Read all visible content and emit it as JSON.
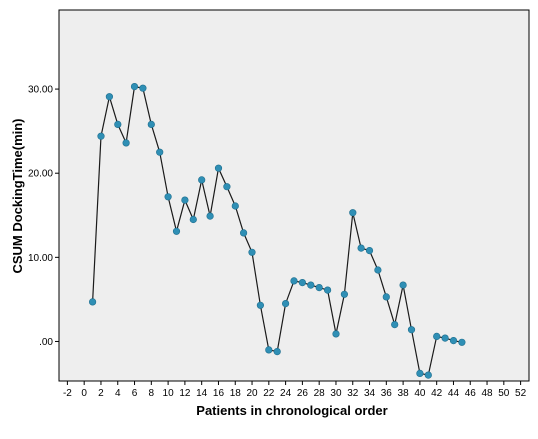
{
  "chart_data": {
    "type": "line",
    "title": "",
    "xlabel": "Patients in chronological order",
    "ylabel": "CSUM DockingTime(min)",
    "xlim": [
      -3,
      53
    ],
    "ylim": [
      -4.7,
      39.4
    ],
    "x_ticks": [
      -2,
      0,
      2,
      4,
      6,
      8,
      10,
      12,
      14,
      16,
      18,
      20,
      22,
      24,
      26,
      28,
      30,
      32,
      34,
      36,
      38,
      40,
      42,
      44,
      46,
      48,
      50,
      52
    ],
    "y_ticks": [
      0,
      10,
      20,
      30
    ],
    "y_tick_labels": [
      ".00",
      "10.00",
      "20.00",
      "30.00"
    ],
    "grid": false,
    "colors": {
      "plot_background": "#eeeeee",
      "line": "#1a1a1a",
      "marker": "#2f8fb5",
      "frame": "#000000"
    },
    "series": [
      {
        "x": [
          1,
          2,
          3,
          4,
          5,
          6,
          7,
          8,
          9,
          10,
          11,
          12,
          13,
          14,
          15,
          16,
          17,
          18,
          19,
          20,
          21,
          22,
          23,
          24,
          25,
          26,
          27,
          28,
          29,
          30,
          31,
          32,
          33,
          34,
          35,
          36,
          37,
          38,
          39,
          40,
          41,
          42,
          43,
          44,
          45
        ],
        "values": [
          4.7,
          24.4,
          29.1,
          25.8,
          23.6,
          30.3,
          30.1,
          25.8,
          22.5,
          17.2,
          13.1,
          16.8,
          14.5,
          19.2,
          14.9,
          20.6,
          18.4,
          16.1,
          12.9,
          10.6,
          4.3,
          -1.0,
          -1.2,
          4.5,
          7.2,
          7.0,
          6.7,
          6.4,
          6.1,
          0.9,
          5.6,
          15.3,
          11.1,
          10.8,
          8.5,
          5.3,
          2.0,
          6.7,
          1.4,
          -3.8,
          -4.0,
          0.6,
          0.4,
          0.1,
          -0.1
        ]
      }
    ]
  }
}
